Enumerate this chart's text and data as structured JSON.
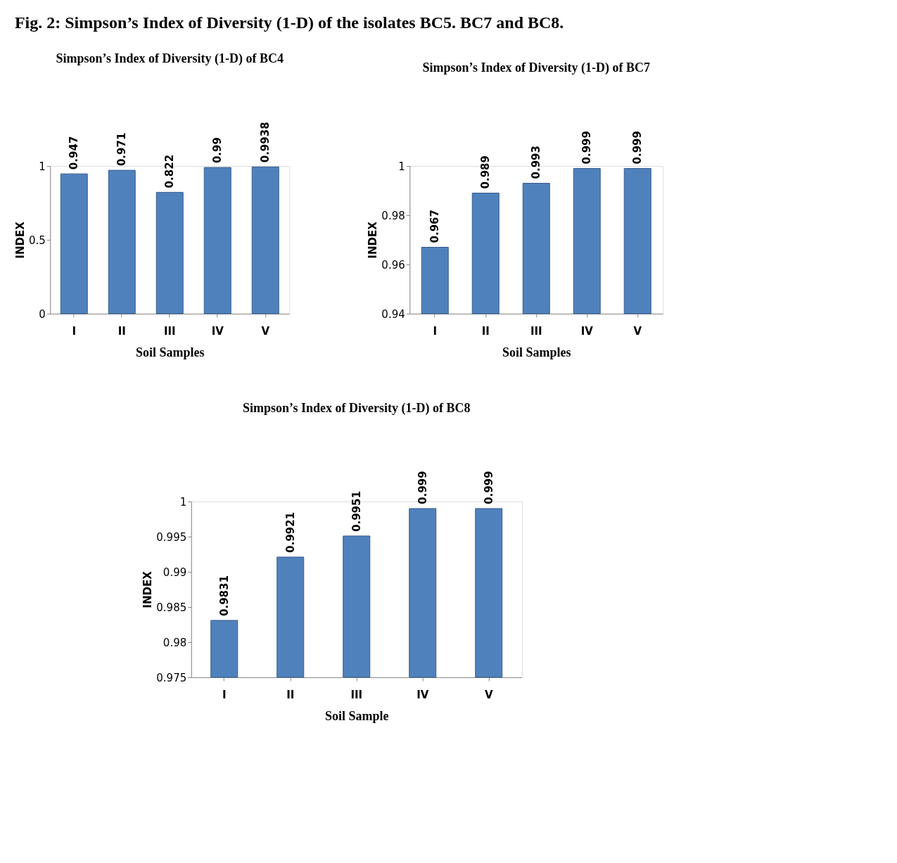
{
  "chart_data": [
    {
      "type": "bar",
      "title": "Simpson’s Index of Diversity (1-D)   of BC4",
      "xlabel": "Soil Samples",
      "ylabel": "INDEX",
      "annotations": [
        "Fig. 2: Simpson’s Index of Diversity (1-D) of the isolates BC5. BC7 and BC8."
      ],
      "categories": [
        "I",
        "II",
        "III",
        "IV",
        "V"
      ],
      "values": [
        0.947,
        0.971,
        0.822,
        0.99,
        0.9938
      ],
      "color": "#4f81bd",
      "ylim": [
        0,
        1
      ],
      "yticks": [
        0,
        0.5,
        1
      ],
      "grid": false,
      "data_labels": true
    },
    {
      "type": "bar",
      "title": "Simpson’s Index of Diversity   (1-D)   of BC7",
      "xlabel": "Soil Samples",
      "ylabel": "INDEX",
      "categories": [
        "I",
        "II",
        "III",
        "IV",
        "V"
      ],
      "values": [
        0.967,
        0.989,
        0.993,
        0.999,
        0.999
      ],
      "color": "#4f81bd",
      "ylim": [
        0.94,
        1
      ],
      "yticks": [
        0.94,
        0.96,
        0.98,
        1
      ],
      "grid": false,
      "data_labels": true
    },
    {
      "type": "bar",
      "title": "Simpson’s Index of Diversity (1-D)   of BC8",
      "xlabel": "Soil Sample",
      "ylabel": "INDEX",
      "categories": [
        "I",
        "II",
        "III",
        "IV",
        "V"
      ],
      "values": [
        0.9831,
        0.9921,
        0.9951,
        0.999,
        0.999
      ],
      "color": "#4f81bd",
      "ylim": [
        0.975,
        1
      ],
      "yticks": [
        0.975,
        0.98,
        0.985,
        0.99,
        0.995,
        1
      ],
      "grid": false,
      "data_labels": true
    }
  ]
}
